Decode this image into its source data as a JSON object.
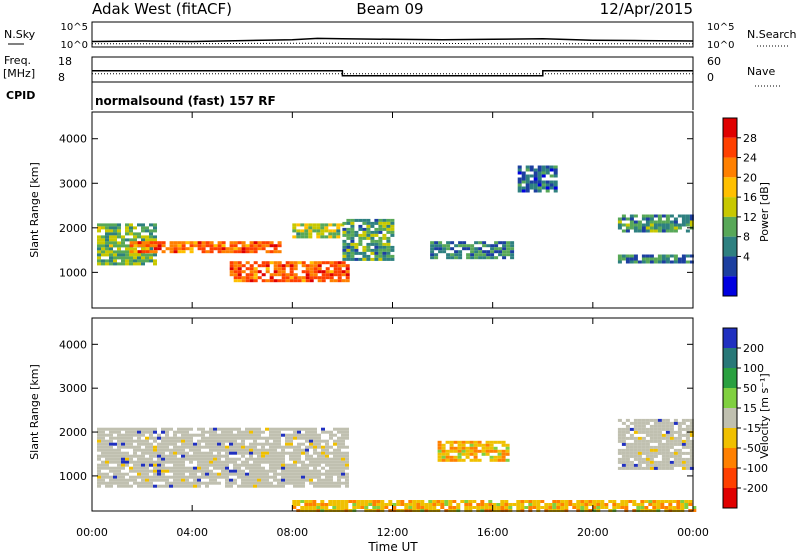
{
  "header": {
    "station": "Adak West (fitACF)",
    "beam": "Beam 09",
    "date": "12/Apr/2015"
  },
  "noise_panel": {
    "left_label": "N.Sky",
    "right_label": "N.Search",
    "left_ticks": [
      "10^5",
      "10^0"
    ],
    "right_ticks": [
      "10^5",
      "10^0"
    ]
  },
  "freq_panel": {
    "left_label_1": "Freq.",
    "left_label_2": "[MHz]",
    "left_ticks": [
      "18",
      "8"
    ],
    "right_label": "Nave",
    "right_ticks": [
      "60",
      "0"
    ]
  },
  "cpid": {
    "label": "CPID",
    "text": "normalsound (fast) 157 RF"
  },
  "axes": {
    "xlabel": "Time UT",
    "xticks": [
      "00:00",
      "04:00",
      "08:00",
      "12:00",
      "16:00",
      "20:00",
      "00:00"
    ],
    "ylabel": "Slant Range [km]",
    "yticks": [
      "4000",
      "3000",
      "2000",
      "1000"
    ]
  },
  "power_bar": {
    "label": "Power [dB]",
    "ticks": [
      "28",
      "24",
      "20",
      "16",
      "12",
      "8",
      "4"
    ],
    "colors": [
      "#e00000",
      "#ff4000",
      "#ff8000",
      "#ffc000",
      "#c8c800",
      "#58a858",
      "#2e8080",
      "#1c3fa0",
      "#0000e0"
    ]
  },
  "velocity_bar": {
    "label": "Velocity [m s⁻¹]",
    "ticks": [
      "200",
      "100",
      "50",
      "15",
      "-15",
      "-50",
      "-100",
      "-200"
    ],
    "colors": [
      "#2030c0",
      "#287878",
      "#2aa040",
      "#80d040",
      "#c0c0b0",
      "#f0c000",
      "#ff8000",
      "#ff4000",
      "#e00000"
    ]
  },
  "chart_data": [
    {
      "type": "line",
      "title": "N.Sky / N.Search",
      "x_unit": "hours UT",
      "xlim": [
        0,
        24
      ],
      "y_scale": "log",
      "ylim": [
        0,
        5
      ],
      "series": [
        {
          "name": "N.Sky",
          "x": [
            0,
            2,
            4,
            6,
            8,
            9,
            10,
            12,
            14,
            16,
            18,
            20,
            22,
            24
          ],
          "log10_values": [
            0.8,
            0.9,
            0.8,
            1.0,
            1.2,
            1.5,
            1.4,
            1.3,
            1.2,
            1.3,
            1.4,
            1.1,
            1.0,
            0.9
          ]
        },
        {
          "name": "N.Search",
          "x": [
            0,
            4,
            8,
            12,
            16,
            20,
            24
          ],
          "log10_values": [
            0.3,
            0.3,
            0.4,
            0.4,
            0.3,
            0.3,
            0.3
          ]
        }
      ]
    },
    {
      "type": "line",
      "title": "Freq. / Nave",
      "xlim": [
        0,
        24
      ],
      "ylim_freq": [
        8,
        18
      ],
      "ylim_nave": [
        0,
        60
      ],
      "series": [
        {
          "name": "Freq.",
          "x": [
            0,
            10,
            10,
            18,
            18,
            24
          ],
          "values": [
            12.5,
            12.5,
            10.5,
            10.5,
            12.5,
            12.5
          ]
        },
        {
          "name": "Nave",
          "x": [
            0,
            24
          ],
          "values": [
            20,
            20
          ]
        }
      ]
    },
    {
      "type": "heatmap",
      "title": "Power [dB]",
      "xlim": [
        0,
        24
      ],
      "ylim": [
        200,
        4600
      ],
      "zlim": [
        0,
        30
      ],
      "regions": [
        {
          "t": [
            0.2,
            2.5
          ],
          "r": [
            1200,
            2100
          ],
          "z": 12
        },
        {
          "t": [
            1.5,
            7.5
          ],
          "r": [
            1450,
            1700
          ],
          "z": 24
        },
        {
          "t": [
            5.5,
            10.2
          ],
          "r": [
            800,
            1250
          ],
          "z": 25
        },
        {
          "t": [
            8.0,
            10.0
          ],
          "r": [
            1800,
            2100
          ],
          "z": 14
        },
        {
          "t": [
            10.0,
            12.0
          ],
          "r": [
            1300,
            2200
          ],
          "z": 10
        },
        {
          "t": [
            13.5,
            16.7
          ],
          "r": [
            1300,
            1700
          ],
          "z": 8
        },
        {
          "t": [
            21.0,
            24.0
          ],
          "r": [
            1900,
            2300
          ],
          "z": 9
        },
        {
          "t": [
            21.0,
            24.0
          ],
          "r": [
            1200,
            1400
          ],
          "z": 8
        },
        {
          "t": [
            17.0,
            18.5
          ],
          "r": [
            2800,
            3400
          ],
          "z": 6
        }
      ]
    },
    {
      "type": "heatmap",
      "title": "Velocity",
      "xlim": [
        0,
        24
      ],
      "ylim": [
        200,
        4600
      ],
      "zlim": [
        -200,
        200
      ],
      "regions": [
        {
          "t": [
            0.2,
            10.2
          ],
          "r": [
            800,
            2100
          ],
          "v": 0
        },
        {
          "t": [
            13.8,
            16.6
          ],
          "r": [
            1350,
            1800
          ],
          "v": -60
        },
        {
          "t": [
            8.0,
            24.0
          ],
          "r": [
            200,
            450
          ],
          "v": -60
        },
        {
          "t": [
            21.0,
            24.0
          ],
          "r": [
            1200,
            2300
          ],
          "v": 0
        }
      ]
    }
  ]
}
